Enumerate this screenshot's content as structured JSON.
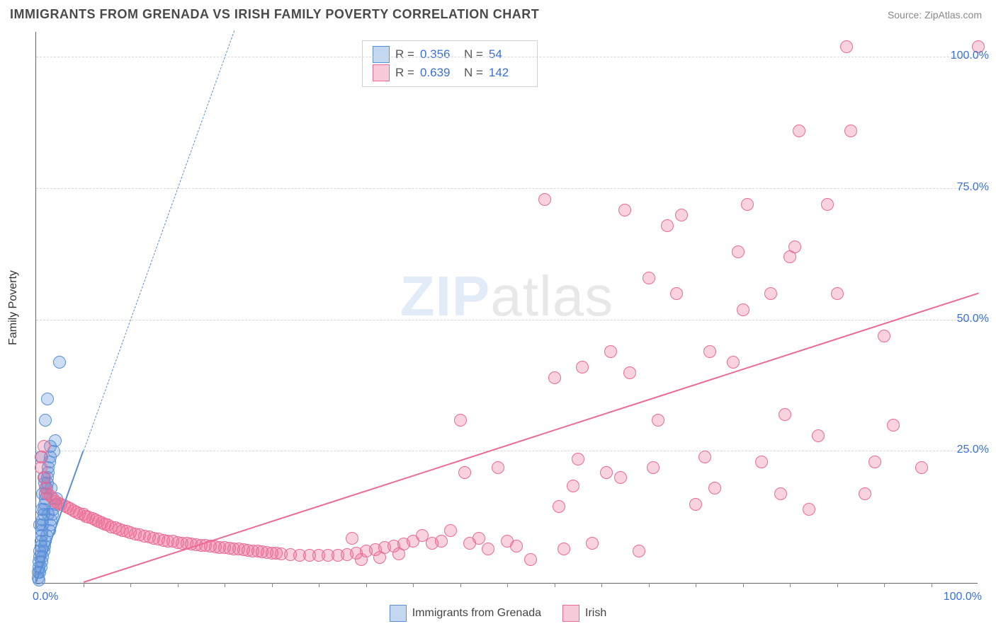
{
  "header": {
    "title": "IMMIGRANTS FROM GRENADA VS IRISH FAMILY POVERTY CORRELATION CHART",
    "source": "Source: ZipAtlas.com"
  },
  "watermark": {
    "zip": "ZIP",
    "atlas": "atlas"
  },
  "chart": {
    "type": "scatter",
    "ylabel": "Family Poverty",
    "background_color": "#ffffff",
    "grid_color": "#d8d8d8",
    "axis_color": "#666666",
    "tick_label_color": "#3a6fd8",
    "label_fontsize": 16,
    "xlim": [
      0,
      100
    ],
    "ylim": [
      0,
      105
    ],
    "xtick_step": 5,
    "yticks": [
      {
        "v": 25,
        "label": "25.0%"
      },
      {
        "v": 50,
        "label": "50.0%"
      },
      {
        "v": 75,
        "label": "75.0%"
      },
      {
        "v": 100,
        "label": "100.0%"
      }
    ],
    "xtick_start_label": "0.0%",
    "xtick_end_label": "100.0%",
    "point_radius": 9,
    "point_border_width": 1,
    "point_fill_opacity": 0.3,
    "series": [
      {
        "name": "Immigrants from Grenada",
        "color": "#5a8fd8",
        "R": "0.356",
        "N": "54",
        "trend": {
          "solid": {
            "x1": 0.0,
            "y1": 0.0,
            "x2": 5.0,
            "y2": 25.0,
            "width": 2.2
          },
          "dashed": {
            "x1": 5.0,
            "y1": 25.0,
            "x2": 21.0,
            "y2": 105.0,
            "dash": "6,5",
            "width": 1.2
          }
        },
        "points": [
          [
            0.2,
            1
          ],
          [
            0.2,
            2
          ],
          [
            0.3,
            3
          ],
          [
            0.3,
            0.5
          ],
          [
            0.3,
            4
          ],
          [
            0.4,
            5
          ],
          [
            0.4,
            2
          ],
          [
            0.4,
            6
          ],
          [
            0.5,
            7
          ],
          [
            0.5,
            3
          ],
          [
            0.5,
            8
          ],
          [
            0.6,
            9
          ],
          [
            0.6,
            4
          ],
          [
            0.6,
            10
          ],
          [
            0.7,
            11
          ],
          [
            0.7,
            5
          ],
          [
            0.7,
            12
          ],
          [
            0.8,
            13
          ],
          [
            0.8,
            6
          ],
          [
            0.8,
            14
          ],
          [
            0.9,
            15
          ],
          [
            0.9,
            7
          ],
          [
            1.0,
            16
          ],
          [
            1.0,
            17
          ],
          [
            1.0,
            8
          ],
          [
            1.1,
            18
          ],
          [
            1.1,
            9
          ],
          [
            1.2,
            19
          ],
          [
            1.2,
            20
          ],
          [
            1.3,
            21
          ],
          [
            1.3,
            22
          ],
          [
            1.4,
            10
          ],
          [
            1.4,
            23
          ],
          [
            1.5,
            24
          ],
          [
            1.5,
            11
          ],
          [
            1.5,
            26
          ],
          [
            1.6,
            12
          ],
          [
            1.7,
            13
          ],
          [
            1.8,
            14
          ],
          [
            1.9,
            25
          ],
          [
            2.0,
            27
          ],
          [
            2.1,
            15
          ],
          [
            2.2,
            16
          ],
          [
            1.0,
            31
          ],
          [
            1.2,
            35
          ],
          [
            2.5,
            42
          ],
          [
            0.5,
            24
          ],
          [
            0.8,
            20
          ],
          [
            0.7,
            17
          ],
          [
            0.9,
            19
          ],
          [
            1.3,
            13
          ],
          [
            1.6,
            18
          ],
          [
            0.4,
            11
          ],
          [
            0.6,
            14
          ]
        ]
      },
      {
        "name": "Irish",
        "color": "#ec6a94",
        "R": "0.639",
        "N": "142",
        "trend": {
          "solid": {
            "x1": 5.0,
            "y1": 0.0,
            "x2": 100.0,
            "y2": 55.0,
            "width": 2.4
          }
        },
        "points": [
          [
            0.5,
            22
          ],
          [
            0.6,
            24
          ],
          [
            0.8,
            26
          ],
          [
            0.9,
            20
          ],
          [
            1.0,
            18
          ],
          [
            1.2,
            17
          ],
          [
            1.5,
            16.5
          ],
          [
            1.8,
            16
          ],
          [
            2.0,
            15.5
          ],
          [
            2.3,
            15.2
          ],
          [
            2.6,
            15
          ],
          [
            3.0,
            14.7
          ],
          [
            3.3,
            14.4
          ],
          [
            3.6,
            14.1
          ],
          [
            4.0,
            13.8
          ],
          [
            4.3,
            13.5
          ],
          [
            4.6,
            13.2
          ],
          [
            5.0,
            13
          ],
          [
            5.3,
            12.7
          ],
          [
            5.6,
            12.5
          ],
          [
            6.0,
            12.2
          ],
          [
            6.3,
            12
          ],
          [
            6.6,
            11.7
          ],
          [
            7.0,
            11.5
          ],
          [
            7.3,
            11.2
          ],
          [
            7.6,
            11
          ],
          [
            8.0,
            10.7
          ],
          [
            8.4,
            10.5
          ],
          [
            8.8,
            10.2
          ],
          [
            9.2,
            10
          ],
          [
            9.6,
            9.8
          ],
          [
            10.0,
            9.5
          ],
          [
            10.5,
            9.3
          ],
          [
            11.0,
            9.1
          ],
          [
            11.5,
            8.9
          ],
          [
            12.0,
            8.7
          ],
          [
            12.5,
            8.5
          ],
          [
            13.0,
            8.3
          ],
          [
            13.5,
            8.1
          ],
          [
            14.0,
            8
          ],
          [
            14.5,
            7.9
          ],
          [
            15.0,
            7.7
          ],
          [
            15.5,
            7.6
          ],
          [
            16.0,
            7.5
          ],
          [
            16.5,
            7.4
          ],
          [
            17.0,
            7.3
          ],
          [
            17.5,
            7.2
          ],
          [
            18.0,
            7.1
          ],
          [
            18.5,
            7
          ],
          [
            19.0,
            6.9
          ],
          [
            19.5,
            6.8
          ],
          [
            20.0,
            6.7
          ],
          [
            20.5,
            6.6
          ],
          [
            21.0,
            6.5
          ],
          [
            21.5,
            6.4
          ],
          [
            22.0,
            6.3
          ],
          [
            22.5,
            6.2
          ],
          [
            23.0,
            6.1
          ],
          [
            23.5,
            6
          ],
          [
            24.0,
            5.9
          ],
          [
            24.5,
            5.8
          ],
          [
            25.0,
            5.7
          ],
          [
            25.5,
            5.6
          ],
          [
            26.0,
            5.5
          ],
          [
            27.0,
            5.4
          ],
          [
            28.0,
            5.3
          ],
          [
            29.0,
            5.2
          ],
          [
            30.0,
            5.2
          ],
          [
            31.0,
            5.2
          ],
          [
            32.0,
            5.3
          ],
          [
            33.0,
            5.4
          ],
          [
            34.0,
            5.6
          ],
          [
            35.0,
            6.0
          ],
          [
            36.0,
            6.3
          ],
          [
            37.0,
            6.8
          ],
          [
            38.0,
            7.0
          ],
          [
            39.0,
            7.4
          ],
          [
            40.0,
            8.0
          ],
          [
            38.5,
            5.5
          ],
          [
            36.5,
            4.8
          ],
          [
            34.5,
            4.5
          ],
          [
            41.0,
            9.0
          ],
          [
            33.5,
            8.5
          ],
          [
            42.0,
            7.5
          ],
          [
            43.0,
            8.0
          ],
          [
            44.0,
            10.0
          ],
          [
            45.0,
            31.0
          ],
          [
            45.5,
            21.0
          ],
          [
            46.0,
            7.5
          ],
          [
            47.0,
            8.5
          ],
          [
            48.0,
            6.5
          ],
          [
            49.0,
            22.0
          ],
          [
            50.0,
            8.0
          ],
          [
            51.0,
            7.0
          ],
          [
            52.5,
            4.5
          ],
          [
            54.0,
            73.0
          ],
          [
            55.0,
            39.0
          ],
          [
            55.5,
            14.5
          ],
          [
            56.0,
            6.5
          ],
          [
            57.0,
            18.5
          ],
          [
            57.5,
            23.5
          ],
          [
            58.0,
            41.0
          ],
          [
            59.0,
            7.5
          ],
          [
            60.5,
            21.0
          ],
          [
            61.0,
            44.0
          ],
          [
            62.0,
            20.0
          ],
          [
            62.5,
            71.0
          ],
          [
            63.0,
            40.0
          ],
          [
            64.0,
            6.0
          ],
          [
            65.0,
            58.0
          ],
          [
            65.5,
            22.0
          ],
          [
            66.0,
            31.0
          ],
          [
            67.0,
            68.0
          ],
          [
            68.0,
            55.0
          ],
          [
            68.5,
            70.0
          ],
          [
            70.0,
            15.0
          ],
          [
            71.0,
            24.0
          ],
          [
            71.5,
            44.0
          ],
          [
            72.0,
            18.0
          ],
          [
            74.0,
            42.0
          ],
          [
            74.5,
            63.0
          ],
          [
            75.0,
            52.0
          ],
          [
            75.5,
            72.0
          ],
          [
            77.0,
            23.0
          ],
          [
            78.0,
            55.0
          ],
          [
            79.0,
            17.0
          ],
          [
            79.5,
            32.0
          ],
          [
            80.0,
            62.0
          ],
          [
            80.5,
            64.0
          ],
          [
            81.0,
            86.0
          ],
          [
            82.0,
            14.0
          ],
          [
            83.0,
            28.0
          ],
          [
            84.0,
            72.0
          ],
          [
            85.0,
            55.0
          ],
          [
            86.0,
            102.0
          ],
          [
            86.5,
            86.0
          ],
          [
            88.0,
            17.0
          ],
          [
            89.0,
            23.0
          ],
          [
            90.0,
            47.0
          ],
          [
            91.0,
            30.0
          ],
          [
            94.0,
            22.0
          ],
          [
            100.0,
            102.0
          ]
        ]
      }
    ]
  },
  "legend_top": {
    "R_label": "R =",
    "N_label": "N ="
  },
  "legend_bottom": {
    "items": [
      "Immigrants from Grenada",
      "Irish"
    ]
  }
}
